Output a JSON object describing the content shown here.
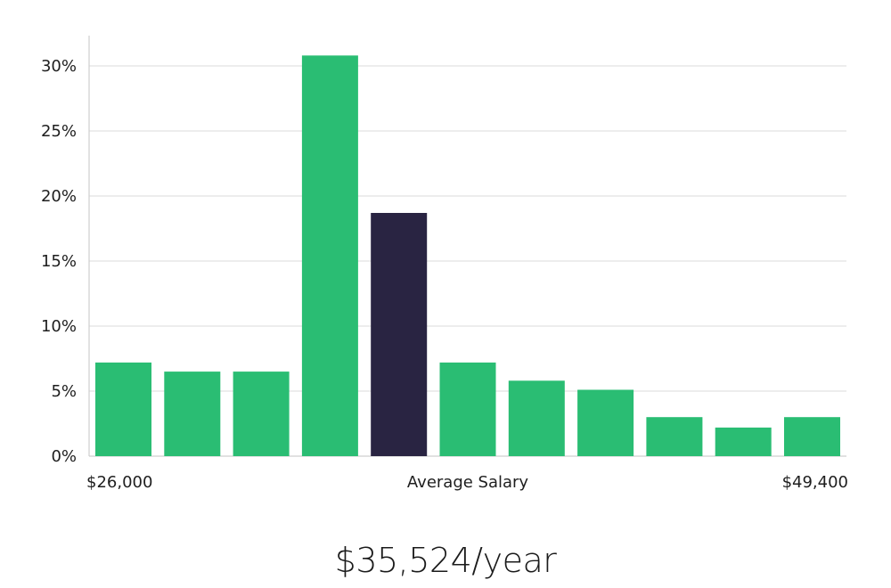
{
  "chart_data": {
    "type": "bar",
    "ylim": [
      0,
      32
    ],
    "yticks": [
      0,
      5,
      10,
      15,
      20,
      25,
      30
    ],
    "ytick_suffix": "%",
    "grid": true,
    "values": [
      7.2,
      6.5,
      6.5,
      30.8,
      18.7,
      7.2,
      5.8,
      5.1,
      3.0,
      2.2,
      3.0
    ],
    "highlight_index": 4,
    "xlabel_left": "$26,000",
    "xlabel_center": "Average Salary",
    "xlabel_right": "$49,400",
    "colors": {
      "bar": "#2abd73",
      "highlight": "#292442",
      "grid": "#e2e2e2",
      "axis": "#cfcfcf",
      "text": "#1e1e1e"
    }
  },
  "summary": {
    "salary": "$35,524/year"
  }
}
